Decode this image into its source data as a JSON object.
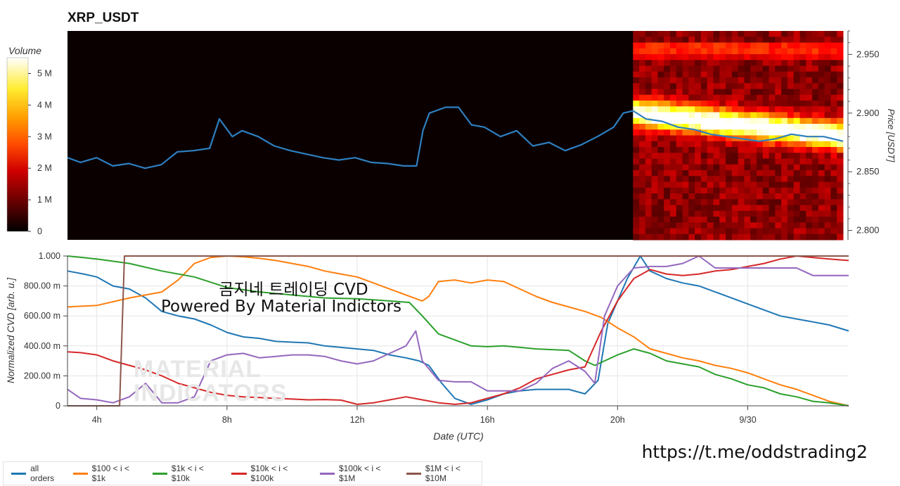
{
  "header": {
    "title": "XRP_USDT"
  },
  "overlay": {
    "line1": "곰지네 트레이딩 CVD",
    "line2": "Powered By Material Indictors",
    "link": "https://t.me/oddstrading2"
  },
  "watermark": {
    "line1": "MATERIAL",
    "line2": "INDICATORS"
  },
  "colors": {
    "all_orders": "#1f77b4",
    "s100_1k": "#ff7f0e",
    "s1k_10k": "#2ca02c",
    "s10k_100k": "#d62728",
    "s100k_1m": "#9467bd",
    "s1m_10m": "#8c564b"
  },
  "legend": [
    {
      "label": "all orders",
      "color": "#1f77b4"
    },
    {
      "label": "$100 < i < $1k",
      "color": "#ff7f0e"
    },
    {
      "label": "$1k < i < $10k",
      "color": "#2ca02c"
    },
    {
      "label": "$10k < i < $100k",
      "color": "#d62728"
    },
    {
      "label": "$100k < i < $1M",
      "color": "#9467bd"
    },
    {
      "label": "$1M < i < $10M",
      "color": "#8c564b"
    }
  ],
  "chart_data": [
    {
      "type": "line",
      "panel": "price-heatmap",
      "title": "XRP_USDT",
      "ylabel": "Price [USDT]",
      "ylim": [
        2.792,
        2.97
      ],
      "yticks": [
        2.8,
        2.85,
        2.9,
        2.95
      ],
      "ytick_labels": [
        "2.800",
        "2.850",
        "2.900",
        "2.950"
      ],
      "xlim": [
        3.1,
        27.1
      ],
      "colorbar": {
        "label": "Volume",
        "ticks": [
          0,
          1,
          2,
          3,
          4,
          5
        ],
        "tick_labels": [
          "0",
          "1 M",
          "2 M",
          "3 M",
          "4 M",
          "5 M"
        ],
        "max": 5.5,
        "colormap": "hot"
      },
      "heatmap_x_start": 20.6,
      "series": [
        {
          "name": "price",
          "x": [
            3.1,
            3.5,
            4.0,
            4.5,
            5.0,
            5.5,
            6.0,
            6.5,
            7.0,
            7.5,
            7.8,
            8.2,
            8.5,
            9.0,
            9.5,
            10.0,
            10.5,
            11.0,
            11.5,
            12.0,
            12.5,
            13.0,
            13.5,
            13.9,
            14.1,
            14.3,
            14.8,
            15.2,
            15.6,
            16.0,
            16.5,
            17.0,
            17.5,
            18.0,
            18.5,
            19.0,
            19.5,
            20.0,
            20.3,
            20.6,
            21.0,
            21.5,
            22.0,
            22.5,
            23.0,
            23.5,
            24.0,
            24.5,
            25.0,
            25.5,
            26.0,
            26.5,
            27.1
          ],
          "y": [
            2.862,
            2.858,
            2.862,
            2.855,
            2.857,
            2.853,
            2.856,
            2.867,
            2.868,
            2.87,
            2.895,
            2.88,
            2.885,
            2.88,
            2.872,
            2.868,
            2.865,
            2.862,
            2.86,
            2.862,
            2.858,
            2.857,
            2.855,
            2.855,
            2.885,
            2.9,
            2.905,
            2.905,
            2.89,
            2.888,
            2.88,
            2.885,
            2.872,
            2.875,
            2.868,
            2.873,
            2.88,
            2.888,
            2.9,
            2.902,
            2.895,
            2.893,
            2.888,
            2.886,
            2.882,
            2.88,
            2.878,
            2.876,
            2.878,
            2.882,
            2.88,
            2.88,
            2.876
          ]
        }
      ]
    },
    {
      "type": "line",
      "panel": "cvd",
      "xlabel": "Date (UTC)",
      "ylabel": "Normalized CVD [arb. u.]",
      "xlim": [
        3.1,
        27.1
      ],
      "ylim": [
        0,
        1000
      ],
      "xticks": [
        4,
        8,
        12,
        16,
        20,
        24
      ],
      "xtick_labels": [
        "4h",
        "8h",
        "12h",
        "16h",
        "20h",
        "9/30"
      ],
      "yticks": [
        0,
        200,
        400,
        600,
        800,
        1000
      ],
      "ytick_labels": [
        "0",
        "200.00 m",
        "400.00 m",
        "600.00 m",
        "800.00 m",
        "1.000"
      ],
      "series": [
        {
          "name": "all orders",
          "color": "#1f77b4",
          "x": [
            3.1,
            3.6,
            4.0,
            4.5,
            5.0,
            5.5,
            6.0,
            6.5,
            7.0,
            7.5,
            8.0,
            8.5,
            9.0,
            9.5,
            10.0,
            10.5,
            11.0,
            11.5,
            12.0,
            12.5,
            13.0,
            13.5,
            13.9,
            14.2,
            14.6,
            15.0,
            15.5,
            16.0,
            16.5,
            17.0,
            17.5,
            18.0,
            18.5,
            19.0,
            19.4,
            19.7,
            20.0,
            20.3,
            20.7,
            21.0,
            21.5,
            22.0,
            22.5,
            23.0,
            23.5,
            24.0,
            24.5,
            25.0,
            25.5,
            26.0,
            26.5,
            27.1
          ],
          "y": [
            900,
            880,
            860,
            800,
            780,
            720,
            630,
            600,
            580,
            540,
            490,
            460,
            450,
            430,
            425,
            420,
            400,
            390,
            380,
            370,
            340,
            320,
            300,
            270,
            150,
            50,
            10,
            40,
            80,
            100,
            110,
            110,
            110,
            80,
            170,
            550,
            700,
            850,
            1000,
            900,
            850,
            820,
            800,
            760,
            720,
            680,
            640,
            600,
            580,
            560,
            540,
            500
          ]
        },
        {
          "name": "$100 < i < $1k",
          "color": "#ff7f0e",
          "x": [
            3.1,
            4.0,
            5.0,
            6.0,
            6.5,
            7.0,
            7.5,
            8.0,
            8.5,
            9.0,
            9.5,
            10.0,
            10.5,
            11.0,
            11.5,
            12.0,
            12.5,
            13.0,
            13.5,
            14.0,
            14.2,
            14.5,
            15.0,
            15.5,
            16.0,
            16.5,
            17.0,
            17.5,
            18.0,
            18.5,
            19.0,
            19.5,
            20.0,
            20.5,
            21.0,
            21.5,
            22.0,
            22.5,
            23.0,
            23.5,
            24.0,
            24.5,
            25.0,
            25.5,
            26.0,
            26.5,
            27.1
          ],
          "y": [
            660,
            670,
            720,
            760,
            840,
            950,
            990,
            1000,
            995,
            985,
            970,
            950,
            930,
            900,
            880,
            860,
            820,
            780,
            740,
            700,
            730,
            830,
            840,
            820,
            840,
            830,
            780,
            730,
            690,
            660,
            630,
            590,
            520,
            460,
            380,
            350,
            320,
            300,
            270,
            250,
            220,
            180,
            140,
            110,
            70,
            30,
            0
          ]
        },
        {
          "name": "$1k < i < $10k",
          "color": "#2ca02c",
          "x": [
            3.1,
            4.0,
            5.0,
            6.0,
            7.0,
            8.0,
            9.0,
            10.0,
            11.0,
            12.0,
            13.0,
            13.6,
            14.0,
            14.5,
            15.0,
            15.5,
            16.0,
            16.5,
            17.0,
            17.5,
            18.0,
            18.5,
            19.0,
            19.3,
            19.6,
            20.0,
            20.5,
            21.0,
            21.5,
            22.0,
            22.5,
            23.0,
            23.5,
            24.0,
            24.5,
            25.0,
            25.5,
            26.0,
            26.5,
            27.1
          ],
          "y": [
            1000,
            980,
            950,
            900,
            860,
            790,
            760,
            740,
            720,
            715,
            700,
            690,
            600,
            480,
            440,
            400,
            395,
            400,
            390,
            380,
            375,
            370,
            300,
            270,
            300,
            340,
            380,
            350,
            300,
            280,
            260,
            210,
            180,
            140,
            120,
            80,
            60,
            30,
            20,
            0
          ]
        },
        {
          "name": "$10k < i < $100k",
          "color": "#d62728",
          "x": [
            3.1,
            3.5,
            4.0,
            4.5,
            5.0,
            5.5,
            6.0,
            6.5,
            7.0,
            7.5,
            8.0,
            8.5,
            9.0,
            9.5,
            10.0,
            10.5,
            11.0,
            11.5,
            12.0,
            12.5,
            13.0,
            13.5,
            14.0,
            14.5,
            15.0,
            15.5,
            16.0,
            16.5,
            17.0,
            17.5,
            18.0,
            18.5,
            19.0,
            19.5,
            20.0,
            20.5,
            21.0,
            21.5,
            22.0,
            22.5,
            23.0,
            23.5,
            24.0,
            24.5,
            25.0,
            25.5,
            26.0,
            26.5,
            27.1
          ],
          "y": [
            360,
            355,
            340,
            300,
            270,
            240,
            200,
            150,
            120,
            90,
            70,
            60,
            55,
            50,
            45,
            40,
            42,
            38,
            10,
            20,
            40,
            60,
            40,
            20,
            10,
            20,
            50,
            80,
            120,
            180,
            210,
            240,
            260,
            500,
            700,
            850,
            910,
            880,
            870,
            880,
            900,
            910,
            930,
            950,
            980,
            1000,
            990,
            980,
            970
          ]
        },
        {
          "name": "$100k < i < $1M",
          "color": "#9467bd",
          "x": [
            3.1,
            3.5,
            4.0,
            4.5,
            5.0,
            5.5,
            6.0,
            6.5,
            7.0,
            7.5,
            8.0,
            8.5,
            9.0,
            9.5,
            10.0,
            10.5,
            11.0,
            11.5,
            12.0,
            12.5,
            13.0,
            13.5,
            13.8,
            14.0,
            14.5,
            15.0,
            15.5,
            16.0,
            16.5,
            17.0,
            17.5,
            18.0,
            18.5,
            19.0,
            19.3,
            19.6,
            20.0,
            20.5,
            21.0,
            21.5,
            22.0,
            22.5,
            23.0,
            23.5,
            24.0,
            24.5,
            25.0,
            25.5,
            26.0,
            26.5,
            27.1
          ],
          "y": [
            110,
            50,
            40,
            20,
            60,
            150,
            20,
            20,
            60,
            300,
            340,
            350,
            320,
            330,
            340,
            340,
            330,
            300,
            280,
            300,
            350,
            400,
            500,
            300,
            170,
            160,
            160,
            100,
            100,
            100,
            150,
            250,
            300,
            230,
            150,
            600,
            800,
            920,
            930,
            930,
            950,
            1000,
            920,
            920,
            920,
            920,
            920,
            920,
            870,
            870,
            870
          ]
        },
        {
          "name": "$1M < i < $10M",
          "color": "#8c564b",
          "x": [
            3.1,
            4.7,
            4.85,
            27.1
          ],
          "y": [
            0,
            0,
            1000,
            1000
          ]
        }
      ]
    }
  ]
}
